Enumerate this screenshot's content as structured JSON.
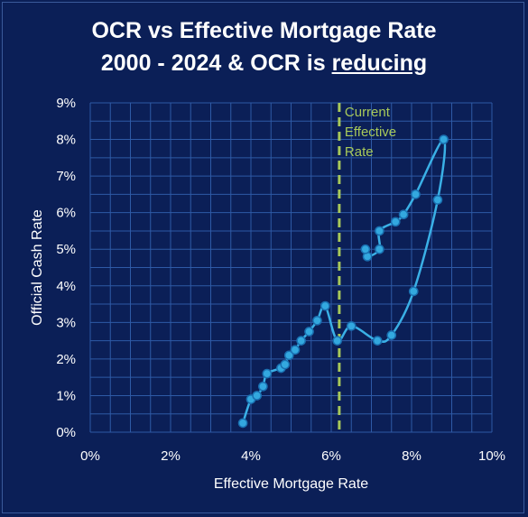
{
  "title_line1": "OCR vs Effective Mortgage Rate",
  "title_line2_prefix": "2000 - 2024 & OCR is ",
  "title_line2_underlined": "reducing",
  "colors": {
    "background": "#0b1f57",
    "grid": "#2e5aa6",
    "series": "#3ab0e6",
    "marker_fill": "#33a8df",
    "marker_stroke": "#1a6fb0",
    "reference_line": "#a8c95a"
  },
  "chart_data": {
    "type": "scatter",
    "xlabel": "Effective Mortgage Rate",
    "ylabel": "Official Cash Rate",
    "xlim": [
      0,
      10
    ],
    "ylim": [
      0,
      9
    ],
    "x_ticks": [
      0,
      2,
      4,
      6,
      8,
      10
    ],
    "y_ticks": [
      0,
      1,
      2,
      3,
      4,
      5,
      6,
      7,
      8,
      9
    ],
    "x_tick_labels": [
      "0%",
      "2%",
      "4%",
      "6%",
      "8%",
      "10%"
    ],
    "y_tick_labels": [
      "0%",
      "1%",
      "2%",
      "3%",
      "4%",
      "5%",
      "6%",
      "7%",
      "8%",
      "9%"
    ],
    "grid": true,
    "series": [
      {
        "points": [
          [
            3.8,
            0.25
          ],
          [
            4.0,
            0.9
          ],
          [
            4.15,
            1.0
          ],
          [
            4.3,
            1.25
          ],
          [
            4.4,
            1.6
          ],
          [
            4.75,
            1.75
          ],
          [
            4.85,
            1.85
          ],
          [
            4.95,
            2.1
          ],
          [
            5.1,
            2.25
          ],
          [
            5.25,
            2.5
          ],
          [
            5.45,
            2.75
          ],
          [
            5.65,
            3.05
          ],
          [
            5.85,
            3.45
          ],
          [
            6.15,
            2.5
          ],
          [
            6.5,
            2.9
          ],
          [
            7.15,
            2.5
          ],
          [
            7.5,
            2.65
          ],
          [
            8.05,
            3.85
          ],
          [
            8.65,
            6.35
          ],
          [
            8.8,
            8.0
          ],
          [
            8.1,
            6.5
          ],
          [
            7.8,
            5.95
          ],
          [
            7.6,
            5.75
          ],
          [
            7.2,
            5.5
          ],
          [
            7.2,
            5.0
          ],
          [
            6.9,
            4.8
          ],
          [
            6.85,
            5.0
          ]
        ]
      }
    ],
    "reference_lines": [
      {
        "x": 6.2,
        "label_lines": [
          "Current",
          "Effective",
          "Rate"
        ]
      }
    ]
  }
}
